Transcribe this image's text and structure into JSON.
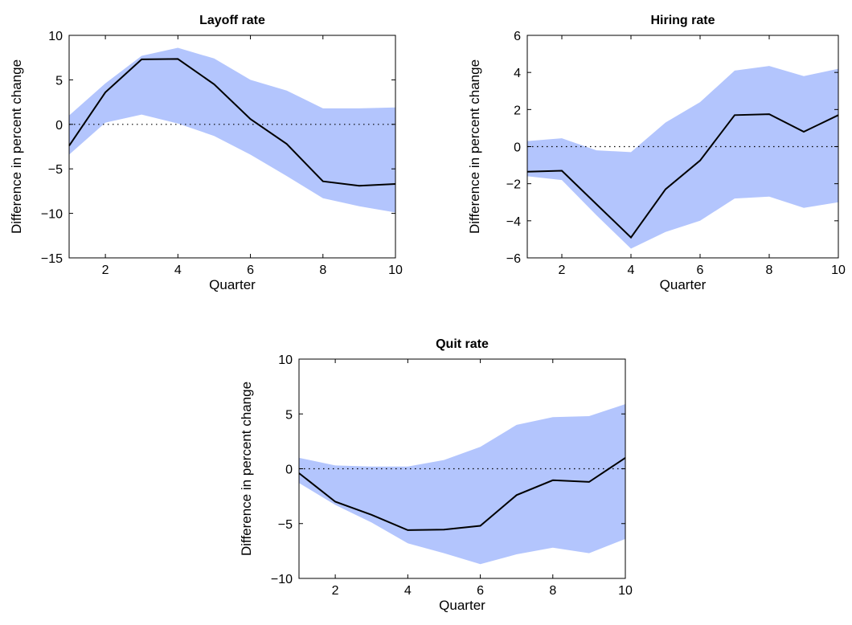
{
  "chart_data": [
    {
      "type": "line",
      "title": "Layoff rate",
      "xlabel": "Quarter",
      "ylabel": "Difference in percent change",
      "xlim": [
        1,
        10
      ],
      "ylim": [
        -15,
        10
      ],
      "xticks": [
        2,
        4,
        6,
        8,
        10
      ],
      "yticks": [
        -15,
        -10,
        -5,
        0,
        5,
        10
      ],
      "zero_line": "dotted",
      "grid": false,
      "band_color": "#b3c5fd",
      "line_color": "#000000",
      "x": [
        1,
        2,
        3,
        4,
        5,
        6,
        7,
        8,
        9,
        10
      ],
      "series": [
        {
          "values": [
            -2.4,
            3.6,
            7.3,
            7.35,
            4.5,
            0.6,
            -2.2,
            -6.4,
            -6.9,
            -6.7
          ]
        }
      ],
      "band": {
        "upper": [
          1.0,
          4.6,
          7.7,
          8.6,
          7.4,
          5.0,
          3.8,
          1.8,
          1.8,
          1.9
        ],
        "lower": [
          -3.4,
          0.2,
          1.1,
          0.1,
          -1.3,
          -3.4,
          -5.8,
          -8.3,
          -9.2,
          -9.9
        ]
      }
    },
    {
      "type": "line",
      "title": "Hiring rate",
      "xlabel": "Quarter",
      "ylabel": "Difference in percent change",
      "xlim": [
        1,
        10
      ],
      "ylim": [
        -6,
        6
      ],
      "xticks": [
        2,
        4,
        6,
        8,
        10
      ],
      "yticks": [
        -6,
        -4,
        -2,
        0,
        2,
        4,
        6
      ],
      "zero_line": "dotted",
      "grid": false,
      "band_color": "#b3c5fd",
      "line_color": "#000000",
      "x": [
        1,
        2,
        3,
        4,
        5,
        6,
        7,
        8,
        9,
        10
      ],
      "series": [
        {
          "values": [
            -1.35,
            -1.3,
            -3.1,
            -4.9,
            -2.3,
            -0.75,
            1.7,
            1.75,
            0.8,
            1.7
          ]
        }
      ],
      "band": {
        "upper": [
          0.3,
          0.45,
          -0.2,
          -0.3,
          1.3,
          2.4,
          4.1,
          4.35,
          3.8,
          4.2
        ],
        "lower": [
          -1.6,
          -1.8,
          -3.7,
          -5.5,
          -4.6,
          -4.0,
          -2.8,
          -2.7,
          -3.3,
          -3.0
        ]
      }
    },
    {
      "type": "line",
      "title": "Quit rate",
      "xlabel": "Quarter",
      "ylabel": "Difference in percent change",
      "xlim": [
        1,
        10
      ],
      "ylim": [
        -10,
        10
      ],
      "xticks": [
        2,
        4,
        6,
        8,
        10
      ],
      "yticks": [
        -10,
        -5,
        0,
        5,
        10
      ],
      "zero_line": "dotted",
      "grid": false,
      "band_color": "#b3c5fd",
      "line_color": "#000000",
      "x": [
        1,
        2,
        3,
        4,
        5,
        6,
        7,
        8,
        9,
        10
      ],
      "series": [
        {
          "values": [
            -0.4,
            -3.0,
            -4.2,
            -5.6,
            -5.55,
            -5.2,
            -2.4,
            -1.05,
            -1.2,
            1.0
          ]
        }
      ],
      "band": {
        "upper": [
          1.0,
          0.3,
          0.2,
          0.2,
          0.8,
          2.0,
          4.0,
          4.7,
          4.8,
          5.9
        ],
        "lower": [
          -1.3,
          -3.3,
          -4.9,
          -6.8,
          -7.7,
          -8.7,
          -7.8,
          -7.2,
          -7.7,
          -6.4
        ]
      }
    }
  ]
}
